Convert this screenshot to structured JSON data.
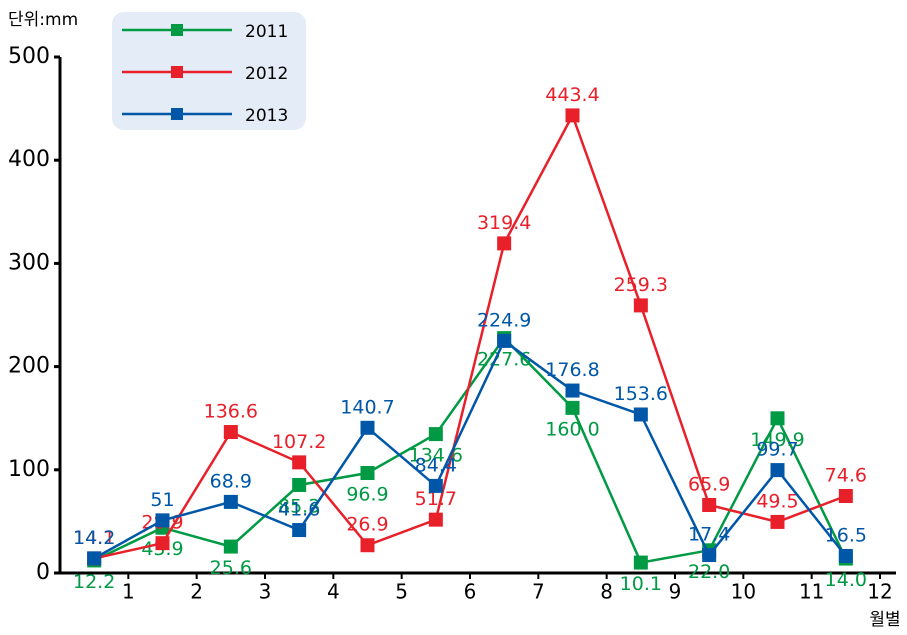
{
  "chart_data": {
    "type": "line",
    "unit_label": "단위:mm",
    "x_label": "월별",
    "categories": [
      "1",
      "2",
      "3",
      "4",
      "5",
      "6",
      "7",
      "8",
      "9",
      "10",
      "11",
      "12"
    ],
    "ylim": [
      0,
      500
    ],
    "yticks": [
      0,
      100,
      200,
      300,
      400,
      500
    ],
    "legend": "top-left",
    "series": [
      {
        "name": "2011",
        "color": "#009a44",
        "values": [
          12.2,
          43.9,
          25.6,
          85.3,
          96.9,
          134.6,
          227.6,
          160,
          10.1,
          22,
          149.9,
          14
        ],
        "value_labels": [
          "12.2",
          "43.9",
          "25.6",
          "85.3",
          "96.9",
          "134.6",
          "227.6",
          "160.0",
          "10.1",
          "22.0",
          "149.9",
          "14.0"
        ]
      },
      {
        "name": "2012",
        "color": "#e8202a",
        "values": [
          14.1,
          28.9,
          136.6,
          107.2,
          26.9,
          51.7,
          319.4,
          443.4,
          259.3,
          65.9,
          49.5,
          74.6
        ],
        "value_labels": [
          "14.1",
          "28.9",
          "136.6",
          "107.2",
          "26.9",
          "51.7",
          "319.4",
          "443.4",
          "259.3",
          "65.9",
          "49.5",
          "74.6"
        ]
      },
      {
        "name": "2013",
        "color": "#0057a8",
        "values": [
          14.2,
          51,
          68.9,
          41.6,
          140.7,
          84.4,
          224.9,
          176.8,
          153.6,
          17.4,
          99.7,
          16.5
        ],
        "value_labels": [
          "14.2",
          "51",
          "68.9",
          "41.6",
          "140.7",
          "84.4",
          "224.9",
          "176.8",
          "153.6",
          "17.4",
          "99.7",
          "16.5"
        ]
      }
    ]
  }
}
